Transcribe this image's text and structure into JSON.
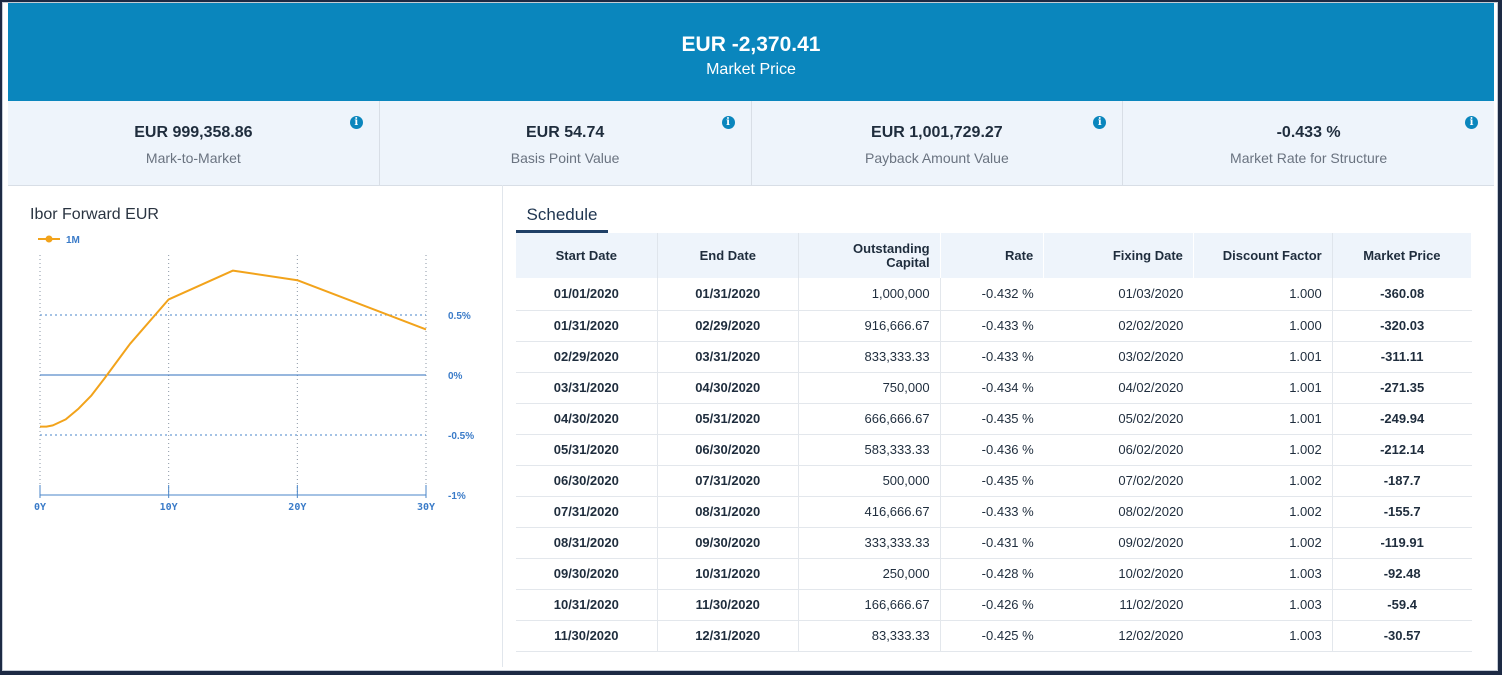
{
  "header": {
    "price": "EUR -2,370.41",
    "label": "Market Price"
  },
  "metrics": [
    {
      "value": "EUR 999,358.86",
      "caption": "Mark-to-Market"
    },
    {
      "value": "EUR 54.74",
      "caption": "Basis Point Value"
    },
    {
      "value": "EUR 1,001,729.27",
      "caption": "Payback Amount Value"
    },
    {
      "value": "-0.433 %",
      "caption": "Market Rate for Structure"
    }
  ],
  "info_glyph": "i",
  "chart": {
    "title": "Ibor Forward EUR"
  },
  "chart_data": {
    "type": "line",
    "title": "Ibor Forward EUR",
    "series": [
      {
        "name": "1M",
        "color": "#f2a31b",
        "x": [
          0,
          0.5,
          1,
          2,
          3,
          4,
          5,
          7,
          10,
          15,
          20,
          30
        ],
        "y": [
          -0.43,
          -0.43,
          -0.42,
          -0.37,
          -0.28,
          -0.17,
          -0.03,
          0.26,
          0.63,
          0.87,
          0.79,
          0.38
        ]
      }
    ],
    "x_ticks": [
      0,
      10,
      20,
      30
    ],
    "x_tick_labels": [
      "0Y",
      "10Y",
      "20Y",
      "30Y"
    ],
    "y_ticks": [
      0.5,
      0,
      -0.5,
      -1
    ],
    "y_tick_labels": [
      "0.5%",
      "0%",
      "-0.5%",
      "-1%"
    ],
    "xlim": [
      0,
      30
    ],
    "ylim": [
      -1,
      1
    ],
    "grid": true,
    "legend": "top-left"
  },
  "schedule": {
    "tab": "Schedule",
    "columns": [
      "Start Date",
      "End Date",
      "Outstanding Capital",
      "Rate",
      "Fixing Date",
      "Discount Factor",
      "Market Price"
    ],
    "rows": [
      [
        "01/01/2020",
        "01/31/2020",
        "1,000,000",
        "-0.432 %",
        "01/03/2020",
        "1.000",
        "-360.08"
      ],
      [
        "01/31/2020",
        "02/29/2020",
        "916,666.67",
        "-0.433 %",
        "02/02/2020",
        "1.000",
        "-320.03"
      ],
      [
        "02/29/2020",
        "03/31/2020",
        "833,333.33",
        "-0.433 %",
        "03/02/2020",
        "1.001",
        "-311.11"
      ],
      [
        "03/31/2020",
        "04/30/2020",
        "750,000",
        "-0.434 %",
        "04/02/2020",
        "1.001",
        "-271.35"
      ],
      [
        "04/30/2020",
        "05/31/2020",
        "666,666.67",
        "-0.435 %",
        "05/02/2020",
        "1.001",
        "-249.94"
      ],
      [
        "05/31/2020",
        "06/30/2020",
        "583,333.33",
        "-0.436 %",
        "06/02/2020",
        "1.002",
        "-212.14"
      ],
      [
        "06/30/2020",
        "07/31/2020",
        "500,000",
        "-0.435 %",
        "07/02/2020",
        "1.002",
        "-187.7"
      ],
      [
        "07/31/2020",
        "08/31/2020",
        "416,666.67",
        "-0.433 %",
        "08/02/2020",
        "1.002",
        "-155.7"
      ],
      [
        "08/31/2020",
        "09/30/2020",
        "333,333.33",
        "-0.431 %",
        "09/02/2020",
        "1.002",
        "-119.91"
      ],
      [
        "09/30/2020",
        "10/31/2020",
        "250,000",
        "-0.428 %",
        "10/02/2020",
        "1.003",
        "-92.48"
      ],
      [
        "10/31/2020",
        "11/30/2020",
        "166,666.67",
        "-0.426 %",
        "11/02/2020",
        "1.003",
        "-59.4"
      ],
      [
        "11/30/2020",
        "12/31/2020",
        "83,333.33",
        "-0.425 %",
        "12/02/2020",
        "1.003",
        "-30.57"
      ]
    ]
  }
}
